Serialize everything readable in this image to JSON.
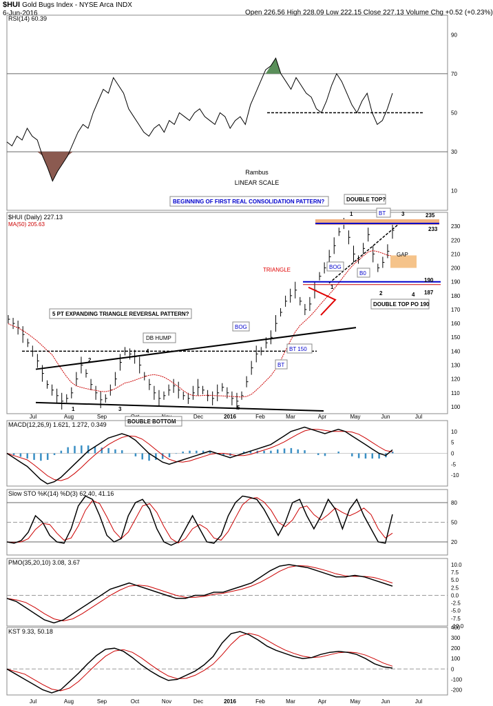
{
  "header": {
    "symbol": "$HUI",
    "name": "Gold Bugs Index - NYSE Arca",
    "indx": "INDX",
    "date": "6-Jun-2016",
    "quote": "Open 226.56  High 228.09  Low 222.15  Close 227.13  Volume  Chg +0.52 (+0.23%)"
  },
  "colors": {
    "up_volume": "#000000",
    "ma": "#cc0000",
    "macd_hist": "#3a8fc4",
    "rsi_over": "#5a8f5a",
    "rsi_under": "#8b5a50",
    "box_blue": "#0000cc",
    "orange_band": "#f0b080",
    "gap_fill": "#f5c38a"
  },
  "chart_data": [
    {
      "type": "line",
      "name": "RSI",
      "label": "RSI(14) 60.39",
      "ylim": [
        0,
        100
      ],
      "yticks": [
        10,
        30,
        50,
        70,
        90
      ],
      "values": [
        35,
        33,
        38,
        36,
        42,
        38,
        36,
        28,
        22,
        15,
        20,
        24,
        28,
        34,
        40,
        44,
        42,
        50,
        56,
        62,
        60,
        68,
        64,
        60,
        52,
        48,
        44,
        40,
        38,
        42,
        44,
        40,
        46,
        44,
        50,
        48,
        46,
        50,
        52,
        48,
        46,
        44,
        50,
        48,
        42,
        46,
        48,
        44,
        54,
        60,
        66,
        72,
        74,
        78,
        70,
        66,
        62,
        68,
        64,
        60,
        58,
        52,
        50,
        56,
        64,
        70,
        66,
        60,
        54,
        50,
        56,
        60,
        50,
        44,
        46,
        52,
        60
      ],
      "annotations": [
        "Rambus",
        "LINEAR SCALE"
      ]
    },
    {
      "type": "line",
      "name": "HUI Daily",
      "label": "$HUI (Daily) 227.13",
      "ma_label": "MA(50) 205.63",
      "ylim": [
        95,
        240
      ],
      "yticks": [
        100,
        110,
        120,
        130,
        140,
        150,
        160,
        170,
        180,
        190,
        200,
        210,
        220,
        230
      ],
      "xticks": [
        "Jul",
        "Aug",
        "Sep",
        "Oct",
        "Nov",
        "Dec",
        "2016",
        "Feb",
        "Mar",
        "Apr",
        "May",
        "Jun",
        "Jul"
      ],
      "close": [
        163,
        160,
        157,
        152,
        146,
        140,
        133,
        124,
        116,
        112,
        108,
        104,
        106,
        110,
        120,
        130,
        124,
        116,
        110,
        105,
        106,
        112,
        120,
        132,
        140,
        138,
        136,
        130,
        122,
        116,
        110,
        106,
        108,
        112,
        115,
        112,
        108,
        106,
        110,
        114,
        112,
        108,
        106,
        110,
        114,
        110,
        106,
        104,
        108,
        118,
        128,
        138,
        140,
        146,
        150,
        160,
        168,
        176,
        180,
        184,
        176,
        170,
        174,
        184,
        194,
        200,
        208,
        216,
        226,
        232,
        222,
        210,
        206,
        214,
        224,
        210,
        200,
        204,
        212,
        227
      ],
      "annotations": [
        "BEGINNING OF FIRST REAL CONSOLIDATION PATTERN?",
        "DOUBLE TOP?",
        "TRIANGLE",
        "5 PT EXPANDING TRIANGLE REVERSAL PATTERN?",
        "DB HUMP",
        "BOUBLE BOTTOM",
        "DOUBLE TOP PO 190",
        "BOG",
        "BT",
        "BT 150",
        "B0",
        "GAP",
        "235",
        "233",
        "190",
        "187",
        "1",
        "2",
        "3",
        "4",
        "5"
      ]
    },
    {
      "type": "line",
      "name": "MACD",
      "label": "MACD(12,26,9) 1.621, 1.272, 0.349",
      "ylim": [
        -15,
        15
      ],
      "yticks": [
        -10,
        -5,
        0,
        5,
        10
      ],
      "values": [
        0,
        -2,
        -4,
        -6,
        -9,
        -12,
        -14,
        -13,
        -11,
        -8,
        -5,
        -2,
        1,
        3,
        5,
        7,
        8,
        9,
        8,
        6,
        3,
        0,
        -2,
        -4,
        -5,
        -4,
        -3,
        -2,
        -1,
        0,
        1,
        0,
        -1,
        -2,
        -1,
        0,
        1,
        2,
        3,
        4,
        6,
        8,
        10,
        11,
        12,
        11,
        10,
        9,
        10,
        11,
        10,
        8,
        6,
        4,
        2,
        0,
        -1,
        1.6
      ]
    },
    {
      "type": "line",
      "name": "Slow STO",
      "label": "Slow STO %K(14) %D(3) 62.40, 41.16",
      "ylim": [
        0,
        100
      ],
      "yticks": [
        20,
        50,
        80
      ],
      "values": [
        20,
        18,
        22,
        35,
        60,
        50,
        30,
        20,
        18,
        40,
        75,
        90,
        85,
        60,
        30,
        20,
        25,
        60,
        80,
        85,
        70,
        40,
        20,
        15,
        20,
        40,
        60,
        40,
        20,
        18,
        30,
        60,
        80,
        90,
        88,
        85,
        70,
        50,
        30,
        50,
        80,
        85,
        60,
        40,
        60,
        85,
        70,
        40,
        70,
        85,
        60,
        40,
        20,
        18,
        62
      ]
    },
    {
      "type": "line",
      "name": "PMO",
      "label": "PMO(35,20,10) 3.08, 3.67",
      "ylim": [
        -10,
        12
      ],
      "yticks": [
        -10,
        -7.5,
        -5,
        -2.5,
        0,
        2.5,
        5,
        7.5,
        10
      ],
      "values": [
        -1,
        -2,
        -4,
        -6,
        -8,
        -9,
        -8,
        -6,
        -4,
        -2,
        0,
        2,
        3,
        4,
        3,
        2,
        1,
        0,
        -1,
        -1,
        0,
        0,
        1,
        1,
        2,
        3,
        4,
        6,
        8,
        9.5,
        10,
        9.5,
        9,
        8,
        7,
        6,
        6,
        6.5,
        6,
        5,
        4,
        3
      ]
    },
    {
      "type": "line",
      "name": "KST",
      "label": "KST 9.33, 50.18",
      "ylim": [
        -250,
        400
      ],
      "yticks": [
        -200,
        -100,
        0,
        100,
        200,
        300,
        400
      ],
      "values": [
        0,
        -50,
        -100,
        -150,
        -200,
        -230,
        -200,
        -120,
        -40,
        50,
        130,
        190,
        200,
        170,
        110,
        40,
        -20,
        -70,
        -110,
        -100,
        -60,
        -20,
        40,
        120,
        250,
        340,
        360,
        330,
        280,
        220,
        180,
        150,
        120,
        100,
        110,
        140,
        160,
        170,
        160,
        140,
        100,
        50,
        20,
        9
      ]
    }
  ]
}
